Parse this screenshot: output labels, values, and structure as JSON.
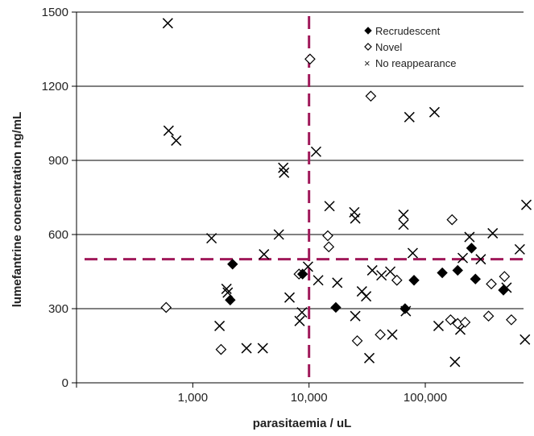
{
  "chart_data": {
    "type": "scatter",
    "xlabel": "parasitaemia / uL",
    "ylabel": "lumefantrine concentration ng/mL",
    "x_scale": "log",
    "xlim": [
      100,
      700000
    ],
    "ylim": [
      0,
      1500
    ],
    "x_ticks": [
      {
        "value": 1000,
        "label": "1,000"
      },
      {
        "value": 10000,
        "label": "10,000"
      },
      {
        "value": 100000,
        "label": "100,000"
      }
    ],
    "y_ticks": [
      {
        "value": 0,
        "label": "0"
      },
      {
        "value": 300,
        "label": "300"
      },
      {
        "value": 600,
        "label": "600"
      },
      {
        "value": 900,
        "label": "900"
      },
      {
        "value": 1200,
        "label": "1200"
      },
      {
        "value": 1500,
        "label": "1500"
      }
    ],
    "grid": "horizontal",
    "legend_position": "top-right",
    "reference_lines": {
      "x": 10000,
      "y": 500,
      "color": "#a0195a"
    },
    "series": [
      {
        "name": "Recrudescent",
        "marker": "filled-diamond",
        "points": [
          [
            2200,
            480
          ],
          [
            2100,
            335
          ],
          [
            8800,
            440
          ],
          [
            17000,
            305
          ],
          [
            67000,
            300
          ],
          [
            80000,
            415
          ],
          [
            140000,
            445
          ],
          [
            190000,
            455
          ],
          [
            250000,
            545
          ],
          [
            270000,
            420
          ],
          [
            470000,
            375
          ]
        ]
      },
      {
        "name": "Novel",
        "marker": "open-diamond",
        "points": [
          [
            590,
            305
          ],
          [
            1750,
            135
          ],
          [
            10200,
            1310
          ],
          [
            34000,
            1160
          ],
          [
            8200,
            440
          ],
          [
            14500,
            595
          ],
          [
            14800,
            550
          ],
          [
            26000,
            170
          ],
          [
            41000,
            195
          ],
          [
            57000,
            415
          ],
          [
            170000,
            660
          ],
          [
            165000,
            255
          ],
          [
            190000,
            240
          ],
          [
            220000,
            245
          ],
          [
            350000,
            270
          ],
          [
            370000,
            400
          ],
          [
            480000,
            430
          ],
          [
            550000,
            255
          ]
        ]
      },
      {
        "name": "No reappearance",
        "marker": "x",
        "points": [
          [
            610,
            1455
          ],
          [
            620,
            1020
          ],
          [
            720,
            980
          ],
          [
            1450,
            585
          ],
          [
            1700,
            230
          ],
          [
            1950,
            380
          ],
          [
            2000,
            365
          ],
          [
            2900,
            140
          ],
          [
            4000,
            140
          ],
          [
            4100,
            520
          ],
          [
            5500,
            600
          ],
          [
            6000,
            870
          ],
          [
            6100,
            850
          ],
          [
            6800,
            345
          ],
          [
            8300,
            250
          ],
          [
            8700,
            285
          ],
          [
            9800,
            470
          ],
          [
            11500,
            935
          ],
          [
            12000,
            415
          ],
          [
            15000,
            715
          ],
          [
            17500,
            405
          ],
          [
            24500,
            690
          ],
          [
            25000,
            665
          ],
          [
            25000,
            270
          ],
          [
            28500,
            370
          ],
          [
            31000,
            350
          ],
          [
            33000,
            100
          ],
          [
            35000,
            455
          ],
          [
            42000,
            435
          ],
          [
            50000,
            450
          ],
          [
            52000,
            195
          ],
          [
            65000,
            680
          ],
          [
            65000,
            640
          ],
          [
            68000,
            290
          ],
          [
            73000,
            1075
          ],
          [
            78000,
            525
          ],
          [
            120000,
            1095
          ],
          [
            130000,
            230
          ],
          [
            180000,
            85
          ],
          [
            200000,
            215
          ],
          [
            210000,
            505
          ],
          [
            240000,
            590
          ],
          [
            300000,
            500
          ],
          [
            380000,
            605
          ],
          [
            500000,
            385
          ],
          [
            650000,
            540
          ],
          [
            720000,
            175
          ],
          [
            740000,
            720
          ]
        ]
      }
    ]
  }
}
